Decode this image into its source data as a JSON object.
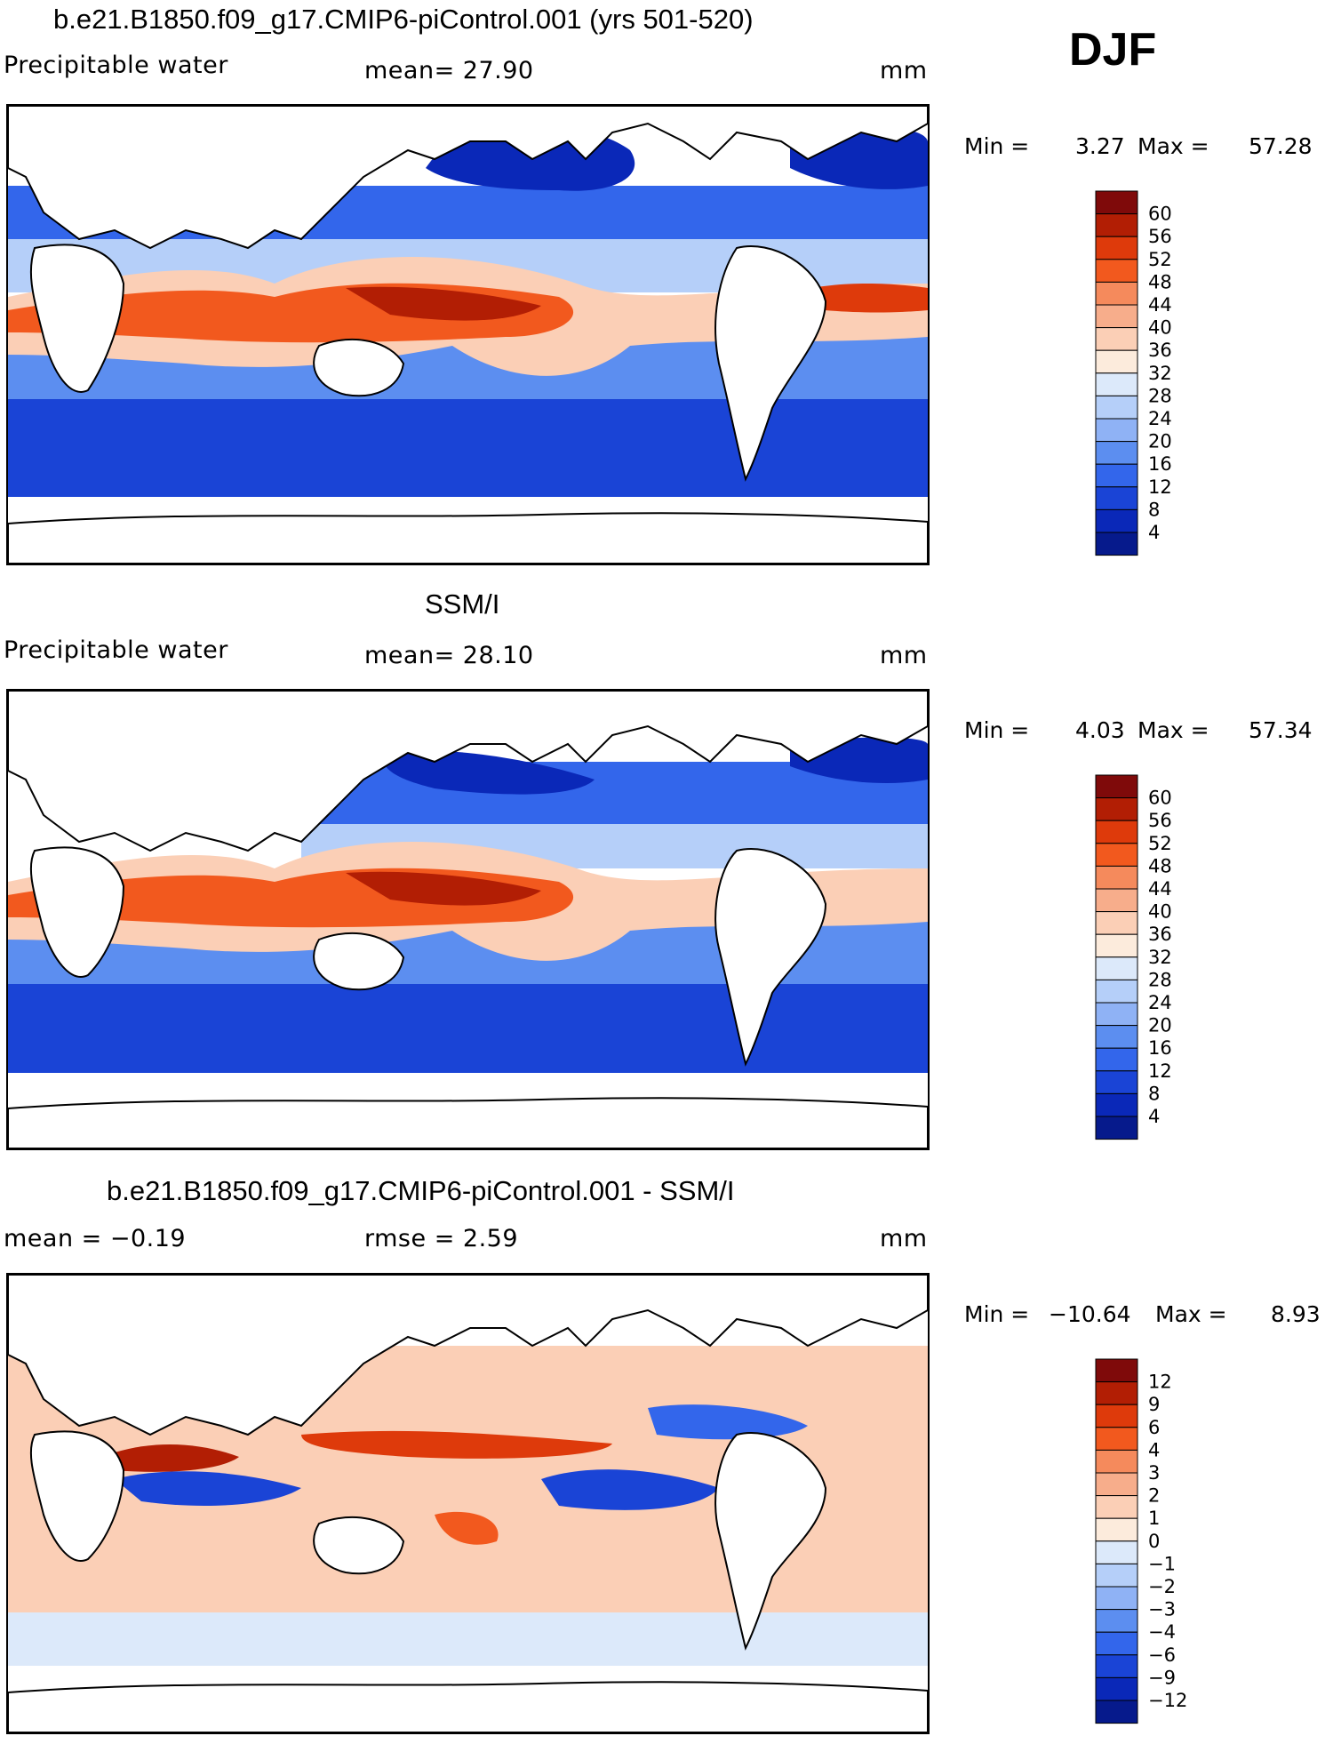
{
  "season": "DJF",
  "panels": [
    {
      "title": "b.e21.B1850.f09_g17.CMIP6-piControl.001 (yrs 501-520)",
      "left_label": "Precipitable water",
      "mid_label": "mean=  27.90",
      "units": "mm",
      "min_label": "Min =",
      "min_value": "3.27",
      "max_label": "Max =",
      "max_value": "57.28",
      "colorbar": {
        "levels": [
          "60",
          "56",
          "52",
          "48",
          "44",
          "40",
          "36",
          "32",
          "28",
          "24",
          "20",
          "16",
          "12",
          "8",
          "4"
        ],
        "colors": [
          "#7f0a0a",
          "#b21e04",
          "#de3a0b",
          "#f2591e",
          "#f58a5c",
          "#f7ad8b",
          "#fbcfb6",
          "#fcebdc",
          "#dce9fa",
          "#b5cff9",
          "#8fb2f5",
          "#5c8ef0",
          "#3366eb",
          "#1a44d6",
          "#0a28b8",
          "#061a8c"
        ]
      },
      "chart_data": {
        "type": "heatmap",
        "title": "b.e21.B1850.f09_g17.CMIP6-piControl.001 (yrs 501-520)",
        "variable": "Precipitable water",
        "units": "mm",
        "mean": 27.9,
        "min": 3.27,
        "max": 57.28,
        "contour_levels": [
          4,
          8,
          12,
          16,
          20,
          24,
          28,
          32,
          36,
          40,
          44,
          48,
          52,
          56,
          60
        ]
      }
    },
    {
      "title": "SSM/I",
      "left_label": "Precipitable water",
      "mid_label": "mean=  28.10",
      "units": "mm",
      "min_label": "Min =",
      "min_value": "4.03",
      "max_label": "Max =",
      "max_value": "57.34",
      "colorbar": {
        "levels": [
          "60",
          "56",
          "52",
          "48",
          "44",
          "40",
          "36",
          "32",
          "28",
          "24",
          "20",
          "16",
          "12",
          "8",
          "4"
        ],
        "colors": [
          "#7f0a0a",
          "#b21e04",
          "#de3a0b",
          "#f2591e",
          "#f58a5c",
          "#f7ad8b",
          "#fbcfb6",
          "#fcebdc",
          "#dce9fa",
          "#b5cff9",
          "#8fb2f5",
          "#5c8ef0",
          "#3366eb",
          "#1a44d6",
          "#0a28b8",
          "#061a8c"
        ]
      },
      "chart_data": {
        "type": "heatmap",
        "title": "SSM/I",
        "variable": "Precipitable water",
        "units": "mm",
        "mean": 28.1,
        "min": 4.03,
        "max": 57.34,
        "contour_levels": [
          4,
          8,
          12,
          16,
          20,
          24,
          28,
          32,
          36,
          40,
          44,
          48,
          52,
          56,
          60
        ]
      }
    },
    {
      "title": "b.e21.B1850.f09_g17.CMIP6-piControl.001 - SSM/I",
      "left_label": "mean =  −0.19",
      "mid_label": "rmse =   2.59",
      "units": "mm",
      "min_label": "Min =",
      "min_value": "−10.64",
      "max_label": "Max =",
      "max_value": "8.93",
      "colorbar": {
        "levels": [
          "12",
          "9",
          "6",
          "4",
          "3",
          "2",
          "1",
          "0",
          "−1",
          "−2",
          "−3",
          "−4",
          "−6",
          "−9",
          "−12"
        ],
        "colors": [
          "#7f0a0a",
          "#b21e04",
          "#de3a0b",
          "#f2591e",
          "#f58a5c",
          "#f7ad8b",
          "#fbcfb6",
          "#fcebdc",
          "#dce9fa",
          "#b5cff9",
          "#8fb2f5",
          "#5c8ef0",
          "#3366eb",
          "#1a44d6",
          "#0a28b8",
          "#061a8c"
        ]
      },
      "chart_data": {
        "type": "heatmap",
        "title": "b.e21.B1850.f09_g17.CMIP6-piControl.001 - SSM/I",
        "units": "mm",
        "mean": -0.19,
        "rmse": 2.59,
        "min": -10.64,
        "max": 8.93,
        "contour_levels": [
          -12,
          -9,
          -6,
          -4,
          -3,
          -2,
          -1,
          0,
          1,
          2,
          3,
          4,
          6,
          9,
          12
        ]
      }
    }
  ],
  "chart_data": [
    {
      "type": "heatmap",
      "title": "b.e21.B1850.f09_g17.CMIP6-piControl.001 (yrs 501-520)",
      "variable": "Precipitable water",
      "units": "mm",
      "mean": 27.9,
      "min": 3.27,
      "max": 57.28,
      "contour_levels": [
        4,
        8,
        12,
        16,
        20,
        24,
        28,
        32,
        36,
        40,
        44,
        48,
        52,
        56,
        60
      ]
    },
    {
      "type": "heatmap",
      "title": "SSM/I",
      "variable": "Precipitable water",
      "units": "mm",
      "mean": 28.1,
      "min": 4.03,
      "max": 57.34,
      "contour_levels": [
        4,
        8,
        12,
        16,
        20,
        24,
        28,
        32,
        36,
        40,
        44,
        48,
        52,
        56,
        60
      ]
    },
    {
      "type": "heatmap",
      "title": "b.e21.B1850.f09_g17.CMIP6-piControl.001 - SSM/I",
      "units": "mm",
      "mean": -0.19,
      "rmse": 2.59,
      "min": -10.64,
      "max": 8.93,
      "contour_levels": [
        -12,
        -9,
        -6,
        -4,
        -3,
        -2,
        -1,
        0,
        1,
        2,
        3,
        4,
        6,
        9,
        12
      ]
    }
  ]
}
